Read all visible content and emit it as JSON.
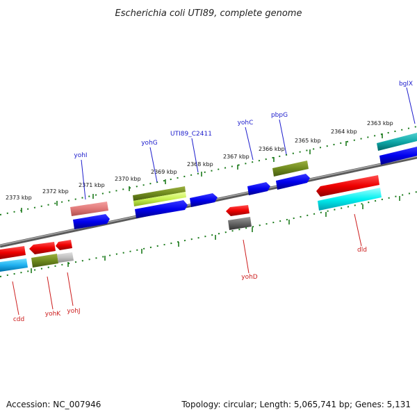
{
  "title": "Escherichia coli UTI89, complete genome",
  "footer": {
    "accession": "Accession: NC_007946",
    "summary": "Topology: circular; Length: 5,065,741 bp; Genes: 5,131"
  },
  "colors": {
    "backbone": "#808080",
    "tick": "#1a7a1a",
    "label_forward": "#1c1ccc",
    "label_reverse": "#cc1c1c"
  },
  "tick_labels": [
    "2373 kbp",
    "2372 kbp",
    "2371 kbp",
    "2370 kbp",
    "2369 kbp",
    "2368 kbp",
    "2367 kbp",
    "2366 kbp",
    "2365 kbp",
    "2364 kbp",
    "2363 kbp"
  ],
  "gene_labels": {
    "forward": [
      "yohI",
      "yohG",
      "UTI89_C2411",
      "yohC",
      "pbpG",
      "bglX"
    ],
    "reverse": [
      "cdd",
      "yohK",
      "yohJ",
      "yohD",
      "dld"
    ]
  }
}
